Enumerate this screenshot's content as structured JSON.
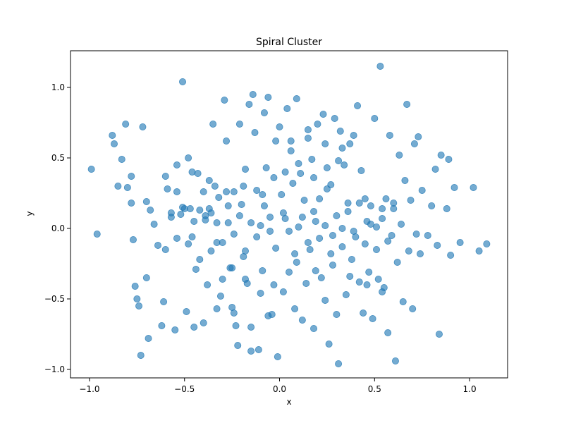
{
  "chart_data": {
    "type": "scatter",
    "title": "Spiral Cluster",
    "xlabel": "x",
    "ylabel": "y",
    "xlim": [
      -1.1,
      1.2
    ],
    "ylim": [
      -1.06,
      1.26
    ],
    "xticks": [
      -1.0,
      -0.5,
      0.0,
      0.5,
      1.0
    ],
    "yticks": [
      -1.0,
      -0.5,
      0.0,
      0.5,
      1.0
    ],
    "xtick_labels": [
      "−1.0",
      "−0.5",
      "0.0",
      "0.5",
      "1.0"
    ],
    "ytick_labels": [
      "−1.0",
      "−0.5",
      "0.0",
      "0.5",
      "1.0"
    ],
    "grid": false,
    "legend": "none",
    "colors": {
      "point": "#1f77b4",
      "point_edge": "#1f77b4"
    },
    "series": [
      {
        "points": [
          [
            -0.99,
            0.42
          ],
          [
            -0.96,
            -0.04
          ],
          [
            -0.88,
            0.66
          ],
          [
            -0.87,
            0.6
          ],
          [
            -0.85,
            0.3
          ],
          [
            -0.83,
            0.49
          ],
          [
            -0.81,
            0.74
          ],
          [
            -0.8,
            0.29
          ],
          [
            -0.78,
            0.37
          ],
          [
            -0.78,
            0.18
          ],
          [
            -0.77,
            -0.08
          ],
          [
            -0.76,
            -0.41
          ],
          [
            -0.75,
            -0.5
          ],
          [
            -0.74,
            -0.55
          ],
          [
            -0.73,
            -0.9
          ],
          [
            -0.72,
            0.72
          ],
          [
            -0.7,
            0.19
          ],
          [
            -0.7,
            -0.35
          ],
          [
            -0.69,
            -0.78
          ],
          [
            -0.68,
            0.13
          ],
          [
            -0.66,
            0.03
          ],
          [
            -0.64,
            -0.12
          ],
          [
            -0.62,
            -0.69
          ],
          [
            -0.61,
            -0.52
          ],
          [
            -0.6,
            0.37
          ],
          [
            -0.59,
            0.28
          ],
          [
            -0.57,
            0.08
          ],
          [
            -0.55,
            -0.72
          ],
          [
            -0.54,
            0.26
          ],
          [
            -0.52,
            0.1
          ],
          [
            -0.51,
            1.04
          ],
          [
            -0.5,
            0.14
          ],
          [
            -0.49,
            -0.59
          ],
          [
            -0.48,
            0.5
          ],
          [
            -0.47,
            0.14
          ],
          [
            -0.46,
            -0.06
          ],
          [
            -0.45,
            -0.7
          ],
          [
            -0.44,
            -0.29
          ],
          [
            -0.43,
            0.39
          ],
          [
            -0.42,
            0.13
          ],
          [
            -0.4,
            -0.67
          ],
          [
            -0.4,
            0.26
          ],
          [
            -0.39,
            0.06
          ],
          [
            -0.38,
            -0.4
          ],
          [
            -0.37,
            0.14
          ],
          [
            -0.36,
            0.11
          ],
          [
            -0.35,
            0.74
          ],
          [
            -0.34,
            0.3
          ],
          [
            -0.33,
            -0.1
          ],
          [
            -0.32,
            0.22
          ],
          [
            -0.3,
            -0.36
          ],
          [
            -0.29,
            0.91
          ],
          [
            -0.28,
            0.62
          ],
          [
            -0.27,
            0.04
          ],
          [
            -0.26,
            -0.28
          ],
          [
            -0.25,
            -0.56
          ],
          [
            -0.24,
            0.26
          ],
          [
            -0.23,
            -0.69
          ],
          [
            -0.22,
            -0.83
          ],
          [
            -0.21,
            0.74
          ],
          [
            -0.2,
            0.17
          ],
          [
            -0.19,
            -0.2
          ],
          [
            -0.18,
            0.42
          ],
          [
            -0.17,
            -0.39
          ],
          [
            -0.16,
            0.88
          ],
          [
            -0.15,
            -0.87
          ],
          [
            -0.14,
            0.95
          ],
          [
            -0.13,
            0.68
          ],
          [
            -0.12,
            0.27
          ],
          [
            -0.11,
            -0.86
          ],
          [
            -0.1,
            0.02
          ],
          [
            -0.09,
            -0.3
          ],
          [
            -0.08,
            0.82
          ],
          [
            -0.07,
            0.43
          ],
          [
            -0.06,
            0.93
          ],
          [
            -0.05,
            -0.02
          ],
          [
            -0.04,
            -0.61
          ],
          [
            -0.03,
            0.36
          ],
          [
            -0.02,
            0.62
          ],
          [
            -0.01,
            -0.91
          ],
          [
            0.0,
            0.72
          ],
          [
            0.01,
            0.24
          ],
          [
            0.02,
            -0.45
          ],
          [
            0.03,
            0.07
          ],
          [
            0.04,
            0.85
          ],
          [
            0.05,
            -0.31
          ],
          [
            0.06,
            0.55
          ],
          [
            0.07,
            0.32
          ],
          [
            0.08,
            -0.57
          ],
          [
            0.09,
            0.92
          ],
          [
            0.1,
            0.01
          ],
          [
            0.11,
            0.39
          ],
          [
            0.12,
            -0.65
          ],
          [
            0.13,
            0.2
          ],
          [
            0.14,
            -0.39
          ],
          [
            0.15,
            0.64
          ],
          [
            0.16,
            -0.15
          ],
          [
            0.17,
            0.49
          ],
          [
            0.18,
            -0.71
          ],
          [
            0.19,
            0.05
          ],
          [
            0.2,
            0.74
          ],
          [
            0.21,
            0.21
          ],
          [
            0.22,
            -0.35
          ],
          [
            0.23,
            0.81
          ],
          [
            0.24,
            -0.51
          ],
          [
            0.25,
            0.43
          ],
          [
            0.26,
            -0.82
          ],
          [
            0.27,
            0.31
          ],
          [
            0.28,
            -0.05
          ],
          [
            0.29,
            0.78
          ],
          [
            0.3,
            -0.61
          ],
          [
            0.31,
            -0.96
          ],
          [
            0.32,
            0.69
          ],
          [
            0.33,
            0.0
          ],
          [
            0.34,
            0.45
          ],
          [
            0.35,
            -0.47
          ],
          [
            0.36,
            0.18
          ],
          [
            0.37,
            0.6
          ],
          [
            0.38,
            -0.22
          ],
          [
            0.39,
            0.66
          ],
          [
            0.4,
            -0.06
          ],
          [
            0.41,
            0.87
          ],
          [
            0.42,
            -0.38
          ],
          [
            0.43,
            0.41
          ],
          [
            0.44,
            -0.6
          ],
          [
            0.45,
            0.21
          ],
          [
            0.46,
            0.05
          ],
          [
            0.47,
            -0.31
          ],
          [
            0.48,
            0.16
          ],
          [
            0.49,
            -0.64
          ],
          [
            0.5,
            0.78
          ],
          [
            0.51,
            0.01
          ],
          [
            0.52,
            -0.36
          ],
          [
            0.53,
            1.15
          ],
          [
            0.54,
            0.14
          ],
          [
            0.55,
            -0.42
          ],
          [
            0.56,
            0.21
          ],
          [
            0.57,
            -0.74
          ],
          [
            0.58,
            0.66
          ],
          [
            0.59,
            -0.05
          ],
          [
            0.6,
            0.14
          ],
          [
            0.61,
            -0.94
          ],
          [
            0.62,
            -0.24
          ],
          [
            0.63,
            0.52
          ],
          [
            0.64,
            0.03
          ],
          [
            0.65,
            -0.52
          ],
          [
            0.66,
            0.34
          ],
          [
            0.67,
            0.88
          ],
          [
            0.68,
            -0.16
          ],
          [
            0.69,
            0.2
          ],
          [
            0.7,
            -0.57
          ],
          [
            0.71,
            0.6
          ],
          [
            0.72,
            -0.04
          ],
          [
            0.73,
            0.65
          ],
          [
            0.74,
            -0.18
          ],
          [
            0.75,
            0.27
          ],
          [
            0.78,
            -0.05
          ],
          [
            0.8,
            0.16
          ],
          [
            0.82,
            0.42
          ],
          [
            0.83,
            -0.12
          ],
          [
            0.84,
            -0.75
          ],
          [
            0.85,
            0.52
          ],
          [
            0.88,
            0.14
          ],
          [
            0.89,
            0.49
          ],
          [
            0.9,
            -0.19
          ],
          [
            0.92,
            0.29
          ],
          [
            0.95,
            -0.1
          ],
          [
            1.02,
            0.29
          ],
          [
            1.05,
            -0.16
          ],
          [
            1.09,
            -0.11
          ],
          [
            -0.05,
            0.08
          ],
          [
            -0.02,
            -0.14
          ],
          [
            0.02,
            0.11
          ],
          [
            0.05,
            -0.02
          ],
          [
            0.08,
            -0.18
          ],
          [
            -0.12,
            -0.06
          ],
          [
            0.12,
            0.08
          ],
          [
            -0.08,
            0.16
          ],
          [
            0.15,
            -0.1
          ],
          [
            -0.15,
            0.04
          ],
          [
            0.18,
            0.12
          ],
          [
            -0.18,
            -0.16
          ],
          [
            0.21,
            -0.07
          ],
          [
            -0.21,
            0.09
          ],
          [
            0.24,
            0.02
          ],
          [
            -0.24,
            -0.04
          ],
          [
            0.27,
            -0.18
          ],
          [
            -0.27,
            0.16
          ],
          [
            0.3,
            0.09
          ],
          [
            -0.3,
            -0.1
          ],
          [
            0.33,
            -0.13
          ],
          [
            -0.33,
            0.04
          ],
          [
            0.36,
            0.12
          ],
          [
            -0.36,
            -0.16
          ],
          [
            0.39,
            -0.02
          ],
          [
            -0.39,
            0.09
          ],
          [
            0.42,
            0.18
          ],
          [
            -0.42,
            -0.22
          ],
          [
            0.45,
            -0.11
          ],
          [
            -0.45,
            0.05
          ],
          [
            0.48,
            0.03
          ],
          [
            -0.48,
            -0.11
          ],
          [
            0.51,
            -0.15
          ],
          [
            -0.51,
            0.15
          ],
          [
            0.54,
            0.07
          ],
          [
            -0.54,
            -0.07
          ],
          [
            0.57,
            -0.09
          ],
          [
            -0.57,
            0.11
          ],
          [
            0.6,
            0.18
          ],
          [
            -0.6,
            -0.15
          ],
          [
            0.03,
            0.4
          ],
          [
            -0.03,
            -0.4
          ],
          [
            0.1,
            0.46
          ],
          [
            -0.1,
            -0.46
          ],
          [
            0.18,
            0.36
          ],
          [
            -0.18,
            -0.36
          ],
          [
            0.25,
            0.28
          ],
          [
            -0.25,
            -0.28
          ],
          [
            0.31,
            0.48
          ],
          [
            -0.31,
            -0.48
          ],
          [
            0.06,
            0.62
          ],
          [
            -0.06,
            -0.62
          ],
          [
            0.15,
            0.7
          ],
          [
            -0.15,
            -0.7
          ],
          [
            0.24,
            0.6
          ],
          [
            -0.24,
            -0.6
          ],
          [
            0.33,
            0.57
          ],
          [
            -0.33,
            -0.57
          ],
          [
            0.09,
            -0.24
          ],
          [
            -0.09,
            0.24
          ],
          [
            0.19,
            -0.3
          ],
          [
            -0.19,
            0.3
          ],
          [
            0.28,
            -0.26
          ],
          [
            -0.28,
            0.26
          ],
          [
            0.37,
            -0.34
          ],
          [
            -0.37,
            0.34
          ],
          [
            0.46,
            -0.4
          ],
          [
            -0.46,
            0.4
          ],
          [
            0.54,
            -0.45
          ],
          [
            -0.54,
            0.45
          ]
        ]
      }
    ]
  }
}
